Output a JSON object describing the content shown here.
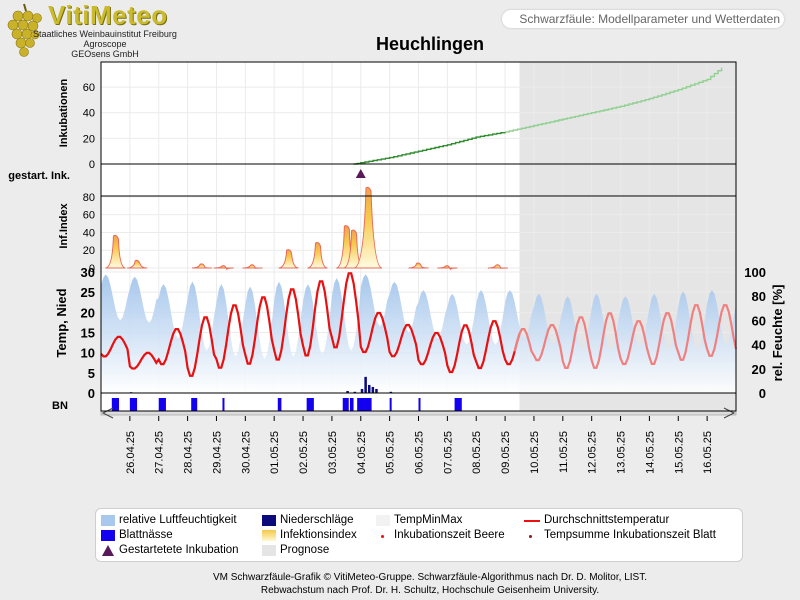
{
  "logo": {
    "title": "VitiMeteo",
    "lines": [
      "Staatliches Weinbauinstitut Freiburg",
      "Agroscope",
      "GEOsens GmbH"
    ]
  },
  "header": {
    "title": "Schwarzfäule: Modellparameter und Wetterdaten"
  },
  "chart_title": "Heuchlingen",
  "colors": {
    "humidity": "#9dc1ea",
    "precip": "#0a0a7a",
    "leaf_wetness": "#1400f0",
    "infection": "#f6c84a",
    "infection_line": "#e86a5a",
    "avg_temp": "#e81010",
    "avg_temp_forecast": "#f08080",
    "incubation": "#2e8b2e",
    "incubation_forecast": "#8fcf8f",
    "marker": "#5a1a5a",
    "forecast_bg": "#e5e5e5"
  },
  "footer": {
    "line1": "VM Schwarzfäule-Grafik © VitiMeteo-Gruppe. Schwarzfäule-Algorithmus nach Dr. D. Molitor, LIST.",
    "line2": "Rebwachstum nach Prof. Dr. H. Schultz, Hochschule Geisenheim University."
  },
  "legend": [
    {
      "label": "relative Luftfeuchtigkeit",
      "icon": "humidity-swatch"
    },
    {
      "label": "Niederschläge",
      "icon": "precip-swatch"
    },
    {
      "label": "TempMinMax",
      "icon": "tempminmax-swatch"
    },
    {
      "label": "Durchschnittstemperatur",
      "icon": "avg-temp-line"
    },
    {
      "label": "Blattnässe",
      "icon": "leaf-wetness-swatch"
    },
    {
      "label": "Infektionsindex",
      "icon": "infection-swatch"
    },
    {
      "label": "Inkubationszeit Beere",
      "icon": "incubation-berry-dot"
    },
    {
      "label": "Tempsumme Inkubationszeit Blatt",
      "icon": "tempsum-dot"
    },
    {
      "label": "Gestartetete Inkubation",
      "icon": "triangle-marker"
    },
    {
      "label": "Prognose",
      "icon": "forecast-swatch"
    }
  ],
  "chart_data": {
    "type": "line",
    "x_dates": [
      "26.04.25",
      "27.04.25",
      "28.04.25",
      "29.04.25",
      "30.04.25",
      "01.05.25",
      "02.05.25",
      "03.05.25",
      "04.05.25",
      "05.05.25",
      "06.05.25",
      "07.05.25",
      "08.05.25",
      "09.05.25",
      "10.05.25",
      "11.05.25",
      "12.05.25",
      "13.05.25",
      "14.05.25",
      "15.05.25",
      "16.05.25"
    ],
    "forecast_start": "09.05.25 12:00",
    "panels": {
      "incubation": {
        "ylabel": "Inkubationen",
        "yticks": [
          0,
          20,
          40,
          60
        ],
        "ylim": [
          0,
          78
        ],
        "series_points": [
          [
            "03.05.25 18:00",
            0
          ],
          [
            "04.05.25 00:00",
            1
          ],
          [
            "05.05.25 00:00",
            5
          ],
          [
            "06.05.25 00:00",
            10
          ],
          [
            "07.05.25 00:00",
            15
          ],
          [
            "08.05.25 00:00",
            21
          ],
          [
            "09.05.25 00:00",
            25
          ],
          [
            "10.05.25 00:00",
            30
          ],
          [
            "11.05.25 00:00",
            35
          ],
          [
            "12.05.25 00:00",
            40
          ],
          [
            "13.05.25 00:00",
            45
          ],
          [
            "14.05.25 00:00",
            51
          ],
          [
            "15.05.25 00:00",
            58
          ],
          [
            "16.05.25 00:00",
            66
          ],
          [
            "16.05.25 12:00",
            75
          ]
        ]
      },
      "started_incubation": {
        "ylabel": "gestart. Ink.",
        "markers": [
          "04.05.25 00:00"
        ]
      },
      "infection_index": {
        "ylabel": "Inf.Index",
        "yticks": [
          0,
          20,
          40,
          60,
          80
        ],
        "ylim": [
          0,
          90
        ],
        "peaks": [
          {
            "center": "25.04.25 12:00",
            "height": 36
          },
          {
            "center": "26.04.25 06:00",
            "height": 8
          },
          {
            "center": "28.04.25 12:00",
            "height": 4
          },
          {
            "center": "29.04.25 06:00",
            "height": 2
          },
          {
            "center": "30.04.25 06:00",
            "height": 3
          },
          {
            "center": "01.05.25 12:00",
            "height": 20
          },
          {
            "center": "02.05.25 12:00",
            "height": 28
          },
          {
            "center": "03.05.25 12:00",
            "height": 47
          },
          {
            "center": "03.05.25 18:00",
            "height": 42
          },
          {
            "center": "04.05.25 06:00",
            "height": 95
          },
          {
            "center": "06.05.25 00:00",
            "height": 5
          },
          {
            "center": "07.05.25 00:00",
            "height": 2
          },
          {
            "center": "08.05.25 18:00",
            "height": 3
          }
        ]
      },
      "weather": {
        "ylabel_left": "Temp, Nied",
        "ylabel_right": "rel. Feuchte [%]",
        "yticks_left": [
          0,
          5,
          10,
          15,
          20,
          25,
          30
        ],
        "ylim_left": [
          0,
          30
        ],
        "yticks_right": [
          0,
          20,
          40,
          60,
          80,
          100
        ],
        "ylim_right": [
          0,
          100
        ],
        "avg_temp_daily": [
          {
            "date": "25.04.25",
            "min": 9,
            "max": 14
          },
          {
            "date": "26.04.25",
            "min": 6,
            "max": 10
          },
          {
            "date": "27.04.25",
            "min": 7,
            "max": 16
          },
          {
            "date": "28.04.25",
            "min": 4,
            "max": 19
          },
          {
            "date": "29.04.25",
            "min": 6,
            "max": 22
          },
          {
            "date": "30.04.25",
            "min": 7,
            "max": 24
          },
          {
            "date": "01.05.25",
            "min": 8,
            "max": 26
          },
          {
            "date": "02.05.25",
            "min": 9,
            "max": 28
          },
          {
            "date": "03.05.25",
            "min": 11,
            "max": 30
          },
          {
            "date": "04.05.25",
            "min": 10,
            "max": 20
          },
          {
            "date": "05.05.25",
            "min": 9,
            "max": 17
          },
          {
            "date": "06.05.25",
            "min": 7,
            "max": 15
          },
          {
            "date": "07.05.25",
            "min": 5,
            "max": 17
          },
          {
            "date": "08.05.25",
            "min": 6,
            "max": 18
          },
          {
            "date": "09.05.25",
            "min": 7,
            "max": 16
          },
          {
            "date": "10.05.25",
            "min": 8,
            "max": 17
          },
          {
            "date": "11.05.25",
            "min": 6,
            "max": 19
          },
          {
            "date": "12.05.25",
            "min": 6,
            "max": 20
          },
          {
            "date": "13.05.25",
            "min": 7,
            "max": 18
          },
          {
            "date": "14.05.25",
            "min": 7,
            "max": 20
          },
          {
            "date": "15.05.25",
            "min": 8,
            "max": 22
          },
          {
            "date": "16.05.25",
            "min": 9,
            "max": 22
          }
        ],
        "humidity_daily": [
          {
            "date": "25.04.25",
            "min": 60,
            "max": 98
          },
          {
            "date": "26.04.25",
            "min": 58,
            "max": 96
          },
          {
            "date": "27.04.25",
            "min": 45,
            "max": 90
          },
          {
            "date": "28.04.25",
            "min": 35,
            "max": 92
          },
          {
            "date": "29.04.25",
            "min": 30,
            "max": 90
          },
          {
            "date": "30.04.25",
            "min": 28,
            "max": 88
          },
          {
            "date": "01.05.25",
            "min": 30,
            "max": 92
          },
          {
            "date": "02.05.25",
            "min": 32,
            "max": 90
          },
          {
            "date": "03.05.25",
            "min": 35,
            "max": 95
          },
          {
            "date": "04.05.25",
            "min": 55,
            "max": 98
          },
          {
            "date": "05.05.25",
            "min": 50,
            "max": 92
          },
          {
            "date": "06.05.25",
            "min": 45,
            "max": 85
          },
          {
            "date": "07.05.25",
            "min": 40,
            "max": 82
          },
          {
            "date": "08.05.25",
            "min": 40,
            "max": 85
          },
          {
            "date": "09.05.25",
            "min": 45,
            "max": 85
          },
          {
            "date": "10.05.25",
            "min": 40,
            "max": 82
          },
          {
            "date": "11.05.25",
            "min": 35,
            "max": 80
          },
          {
            "date": "12.05.25",
            "min": 35,
            "max": 82
          },
          {
            "date": "13.05.25",
            "min": 38,
            "max": 80
          },
          {
            "date": "14.05.25",
            "min": 35,
            "max": 82
          },
          {
            "date": "15.05.25",
            "min": 35,
            "max": 84
          },
          {
            "date": "16.05.25",
            "min": 40,
            "max": 85
          }
        ],
        "precipitation": [
          {
            "time": "26.04.25 00:00",
            "value": 0.2
          },
          {
            "time": "03.05.25 12:00",
            "value": 0.5
          },
          {
            "time": "03.05.25 18:00",
            "value": 0.3
          },
          {
            "time": "04.05.25 00:00",
            "value": 1.0
          },
          {
            "time": "04.05.25 03:00",
            "value": 4.0
          },
          {
            "time": "04.05.25 06:00",
            "value": 2.0
          },
          {
            "time": "04.05.25 09:00",
            "value": 1.5
          },
          {
            "time": "04.05.25 12:00",
            "value": 1.0
          },
          {
            "time": "05.05.25 00:00",
            "value": 0.3
          }
        ]
      },
      "leaf_wetness": {
        "ylabel": "BN",
        "periods": [
          [
            "25.04.25 09:00",
            "25.04.25 15:00"
          ],
          [
            "26.04.25 00:00",
            "26.04.25 06:00"
          ],
          [
            "27.04.25 00:00",
            "27.04.25 06:00"
          ],
          [
            "28.04.25 03:00",
            "28.04.25 08:00"
          ],
          [
            "29.04.25 05:00",
            "29.04.25 06:00"
          ],
          [
            "01.05.25 03:00",
            "01.05.25 06:00"
          ],
          [
            "02.05.25 03:00",
            "02.05.25 09:00"
          ],
          [
            "03.05.25 09:00",
            "03.05.25 14:00"
          ],
          [
            "03.05.25 15:00",
            "03.05.25 18:00"
          ],
          [
            "03.05.25 21:00",
            "04.05.25 09:00"
          ],
          [
            "05.05.25 00:00",
            "05.05.25 01:00"
          ],
          [
            "06.05.25 00:00",
            "06.05.25 01:00"
          ],
          [
            "07.05.25 06:00",
            "07.05.25 12:00"
          ]
        ]
      }
    }
  }
}
